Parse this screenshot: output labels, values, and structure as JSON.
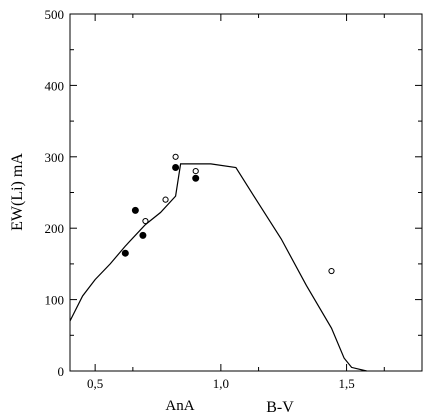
{
  "chart_data": {
    "type": "scatter",
    "title": "",
    "xlabel": "B-V",
    "ylabel": "EW(Li) mA",
    "annotation": "AnA",
    "xlim": [
      0.4,
      1.8
    ],
    "ylim": [
      0,
      500
    ],
    "x_tick_labels": [
      "0,5",
      "1,0",
      "1,5"
    ],
    "x_ticks": [
      0.5,
      1.0,
      1.5
    ],
    "y_tick_labels": [
      "0",
      "100",
      "200",
      "300",
      "400",
      "500"
    ],
    "y_ticks": [
      0,
      100,
      200,
      300,
      400,
      500
    ],
    "grid": false,
    "series": [
      {
        "marker": "filled-circle",
        "x": [
          0.62,
          0.66,
          0.69,
          0.82,
          0.9
        ],
        "y": [
          165,
          225,
          190,
          285,
          270
        ]
      },
      {
        "marker": "open-circle",
        "x": [
          0.7,
          0.78,
          0.82,
          0.9,
          1.44
        ],
        "y": [
          210,
          240,
          300,
          280,
          140
        ]
      },
      {
        "style": "line",
        "x": [
          0.4,
          0.45,
          0.5,
          0.56,
          0.62,
          0.7,
          0.76,
          0.82,
          0.84,
          0.96,
          1.06,
          1.14,
          1.24,
          1.34,
          1.44,
          1.49,
          1.52,
          1.58
        ],
        "y": [
          70,
          105,
          128,
          150,
          175,
          205,
          222,
          245,
          290,
          290,
          285,
          240,
          185,
          120,
          60,
          18,
          5,
          0
        ]
      }
    ]
  }
}
